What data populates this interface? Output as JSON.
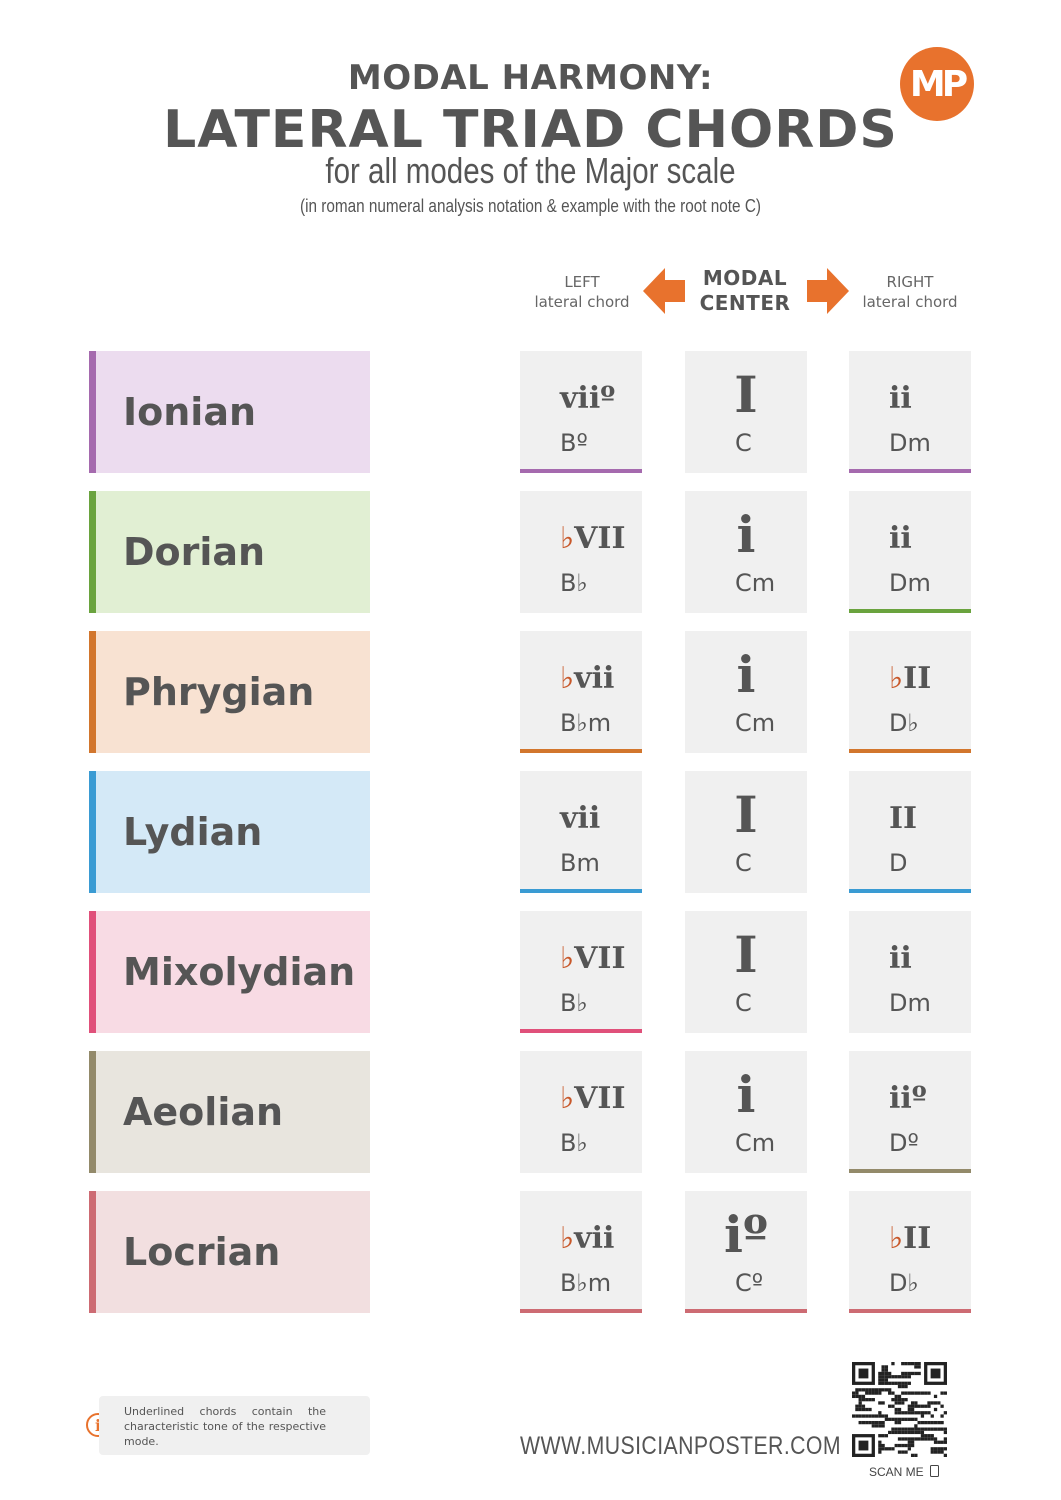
{
  "header": {
    "line1": "MODAL HARMONY:",
    "line2": "LATERAL TRIAD CHORDS",
    "line3": "for all modes of the Major scale",
    "line4": "(in roman numeral analysis notation & example with the root note C)",
    "logo": "MP"
  },
  "columns": {
    "left_top": "LEFT",
    "left_bottom": "lateral chord",
    "center_top": "MODAL",
    "center_bottom": "CENTER",
    "right_top": "RIGHT",
    "right_bottom": "lateral chord"
  },
  "modes": [
    {
      "name": "Ionian",
      "color": "#a56aae",
      "bg": "#ecdcef",
      "left": {
        "flat": "",
        "roman": "viiº",
        "chord": "Bº",
        "underline": true
      },
      "center": {
        "flat": "",
        "roman": "I",
        "chord": "C",
        "underline": false
      },
      "right": {
        "flat": "",
        "roman": "ii",
        "chord": "Dm",
        "underline": true
      }
    },
    {
      "name": "Dorian",
      "color": "#6aa33e",
      "bg": "#e1efd3",
      "left": {
        "flat": "♭",
        "roman": "VII",
        "chord": "B♭",
        "underline": false
      },
      "center": {
        "flat": "",
        "roman": "i",
        "chord": "Cm",
        "underline": false
      },
      "right": {
        "flat": "",
        "roman": "ii",
        "chord": "Dm",
        "underline": true
      }
    },
    {
      "name": "Phrygian",
      "color": "#d2762d",
      "bg": "#f8e2d2",
      "left": {
        "flat": "♭",
        "roman": "vii",
        "chord": "B♭m",
        "underline": true
      },
      "center": {
        "flat": "",
        "roman": "i",
        "chord": "Cm",
        "underline": false
      },
      "right": {
        "flat": "♭",
        "roman": "II",
        "chord": "D♭",
        "underline": true
      }
    },
    {
      "name": "Lydian",
      "color": "#3a9bd3",
      "bg": "#d4e9f7",
      "left": {
        "flat": "",
        "roman": "vii",
        "chord": "Bm",
        "underline": true
      },
      "center": {
        "flat": "",
        "roman": "I",
        "chord": "C",
        "underline": false
      },
      "right": {
        "flat": "",
        "roman": "II",
        "chord": "D",
        "underline": true
      }
    },
    {
      "name": "Mixolydian",
      "color": "#e0507a",
      "bg": "#f8dbe4",
      "left": {
        "flat": "♭",
        "roman": "VII",
        "chord": "B♭",
        "underline": true
      },
      "center": {
        "flat": "",
        "roman": "I",
        "chord": "C",
        "underline": false
      },
      "right": {
        "flat": "",
        "roman": "ii",
        "chord": "Dm",
        "underline": false
      }
    },
    {
      "name": "Aeolian",
      "color": "#938a6a",
      "bg": "#e8e5de",
      "left": {
        "flat": "♭",
        "roman": "VII",
        "chord": "B♭",
        "underline": false
      },
      "center": {
        "flat": "",
        "roman": "i",
        "chord": "Cm",
        "underline": false
      },
      "right": {
        "flat": "",
        "roman": "iiº",
        "chord": "Dº",
        "underline": true
      }
    },
    {
      "name": "Locrian",
      "color": "#cd6b73",
      "bg": "#f2dfe0",
      "left": {
        "flat": "♭",
        "roman": "vii",
        "chord": "B♭m",
        "underline": true
      },
      "center": {
        "flat": "",
        "roman": "iº",
        "chord": "Cº",
        "underline": true
      },
      "right": {
        "flat": "♭",
        "roman": "II",
        "chord": "D♭",
        "underline": true
      }
    }
  ],
  "footer": {
    "note": "Underlined chords contain the characteristic tone of the respective mode.",
    "site": "WWW.MUSICIANPOSTER.COM",
    "scan": "SCAN ME"
  },
  "accent_color": "#e8722d"
}
